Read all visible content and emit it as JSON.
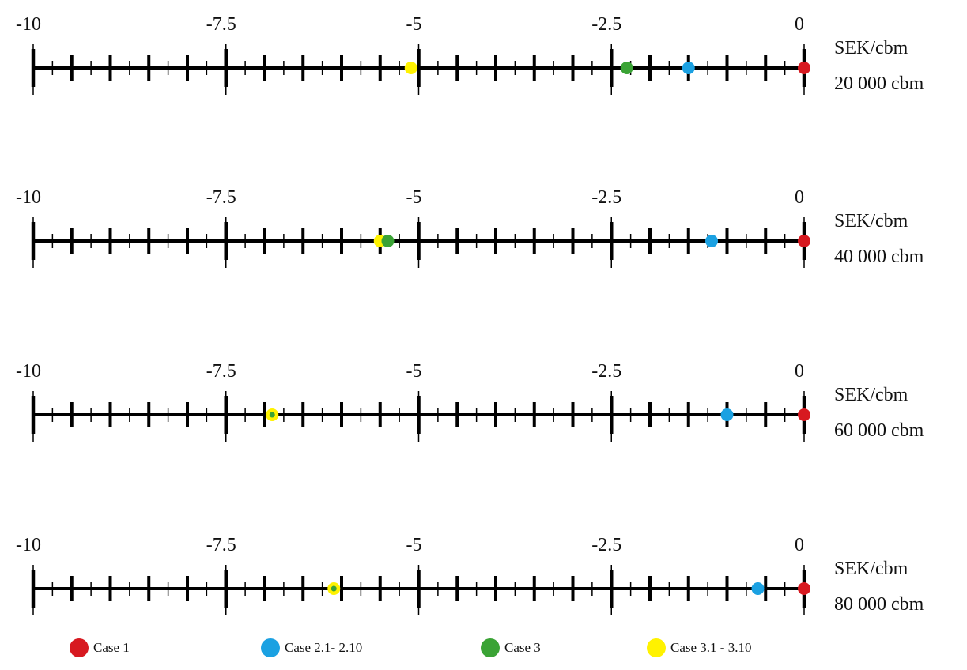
{
  "chart_data": [
    {
      "type": "scatter",
      "xlim": [
        -10,
        0
      ],
      "tick_labels": [
        "-10",
        "-7.5",
        "-5",
        "-2.5",
        "0"
      ],
      "tick_values": [
        -10,
        -7.5,
        -5,
        -2.5,
        0
      ],
      "unit_label": "SEK/cbm",
      "volume_label": "20 000 cbm",
      "points": [
        {
          "series": "Case 1",
          "x": 0
        },
        {
          "series": "Case 2.1- 2.10",
          "x": -1.5
        },
        {
          "series": "Case 3",
          "x": -2.3
        },
        {
          "series": "Case 3.1 - 3.10",
          "x": -5.1
        }
      ]
    },
    {
      "type": "scatter",
      "xlim": [
        -10,
        0
      ],
      "tick_labels": [
        "-10",
        "-7.5",
        "-5",
        "-2.5",
        "0"
      ],
      "tick_values": [
        -10,
        -7.5,
        -5,
        -2.5,
        0
      ],
      "unit_label": "SEK/cbm",
      "volume_label": "40 000 cbm",
      "points": [
        {
          "series": "Case 1",
          "x": 0
        },
        {
          "series": "Case 2.1- 2.10",
          "x": -1.2
        },
        {
          "series": "Case 3.1 - 3.10",
          "x": -5.5
        },
        {
          "series": "Case 3",
          "x": -5.4
        }
      ]
    },
    {
      "type": "scatter",
      "xlim": [
        -10,
        0
      ],
      "tick_labels": [
        "-10",
        "-7.5",
        "-5",
        "-2.5",
        "0"
      ],
      "tick_values": [
        -10,
        -7.5,
        -5,
        -2.5,
        0
      ],
      "unit_label": "SEK/cbm",
      "volume_label": "60 000 cbm",
      "points": [
        {
          "series": "Case 1",
          "x": 0
        },
        {
          "series": "Case 2.1- 2.10",
          "x": -1.0
        },
        {
          "series": "Case 3.1 - 3.10",
          "x": -6.9
        },
        {
          "series": "Case 3",
          "x": -6.9,
          "inner": true
        }
      ]
    },
    {
      "type": "scatter",
      "xlim": [
        -10,
        0
      ],
      "tick_labels": [
        "-10",
        "-7.5",
        "-5",
        "-2.5",
        "0"
      ],
      "tick_values": [
        -10,
        -7.5,
        -5,
        -2.5,
        0
      ],
      "unit_label": "SEK/cbm",
      "volume_label": "80 000 cbm",
      "points": [
        {
          "series": "Case 1",
          "x": 0
        },
        {
          "series": "Case 2.1- 2.10",
          "x": -0.6
        },
        {
          "series": "Case 3.1 - 3.10",
          "x": -6.1
        },
        {
          "series": "Case 3",
          "x": -6.1,
          "inner": true
        }
      ]
    }
  ],
  "legend": [
    {
      "label": "Case 1",
      "color": "#d71920"
    },
    {
      "label": "Case 2.1- 2.10",
      "color": "#1ba1e2"
    },
    {
      "label": "Case 3",
      "color": "#3aa335"
    },
    {
      "label": "Case 3.1 - 3.10",
      "color": "#fff200"
    }
  ]
}
